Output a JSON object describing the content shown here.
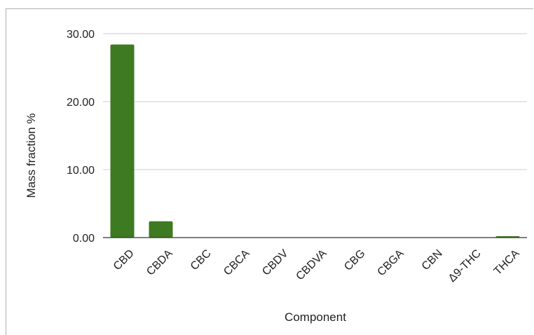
{
  "chart_data": {
    "type": "bar",
    "title": "",
    "xlabel": "Component",
    "ylabel": "Mass fraction %",
    "categories": [
      "CBD",
      "CBDA",
      "CBC",
      "CBCA",
      "CBDV",
      "CBDVA",
      "CBG",
      "CBGA",
      "CBN",
      "Δ9-THC",
      "THCA"
    ],
    "values": [
      28.4,
      2.4,
      0,
      0,
      0,
      0,
      0,
      0,
      0,
      0,
      0.2
    ],
    "ylim": [
      0,
      30
    ],
    "yticks": [
      "0.00",
      "10.00",
      "20.00",
      "30.00"
    ],
    "ytick_values": [
      0,
      10,
      20,
      30
    ],
    "grid": true,
    "legend": "none",
    "bar_color": "#3d7a22"
  }
}
